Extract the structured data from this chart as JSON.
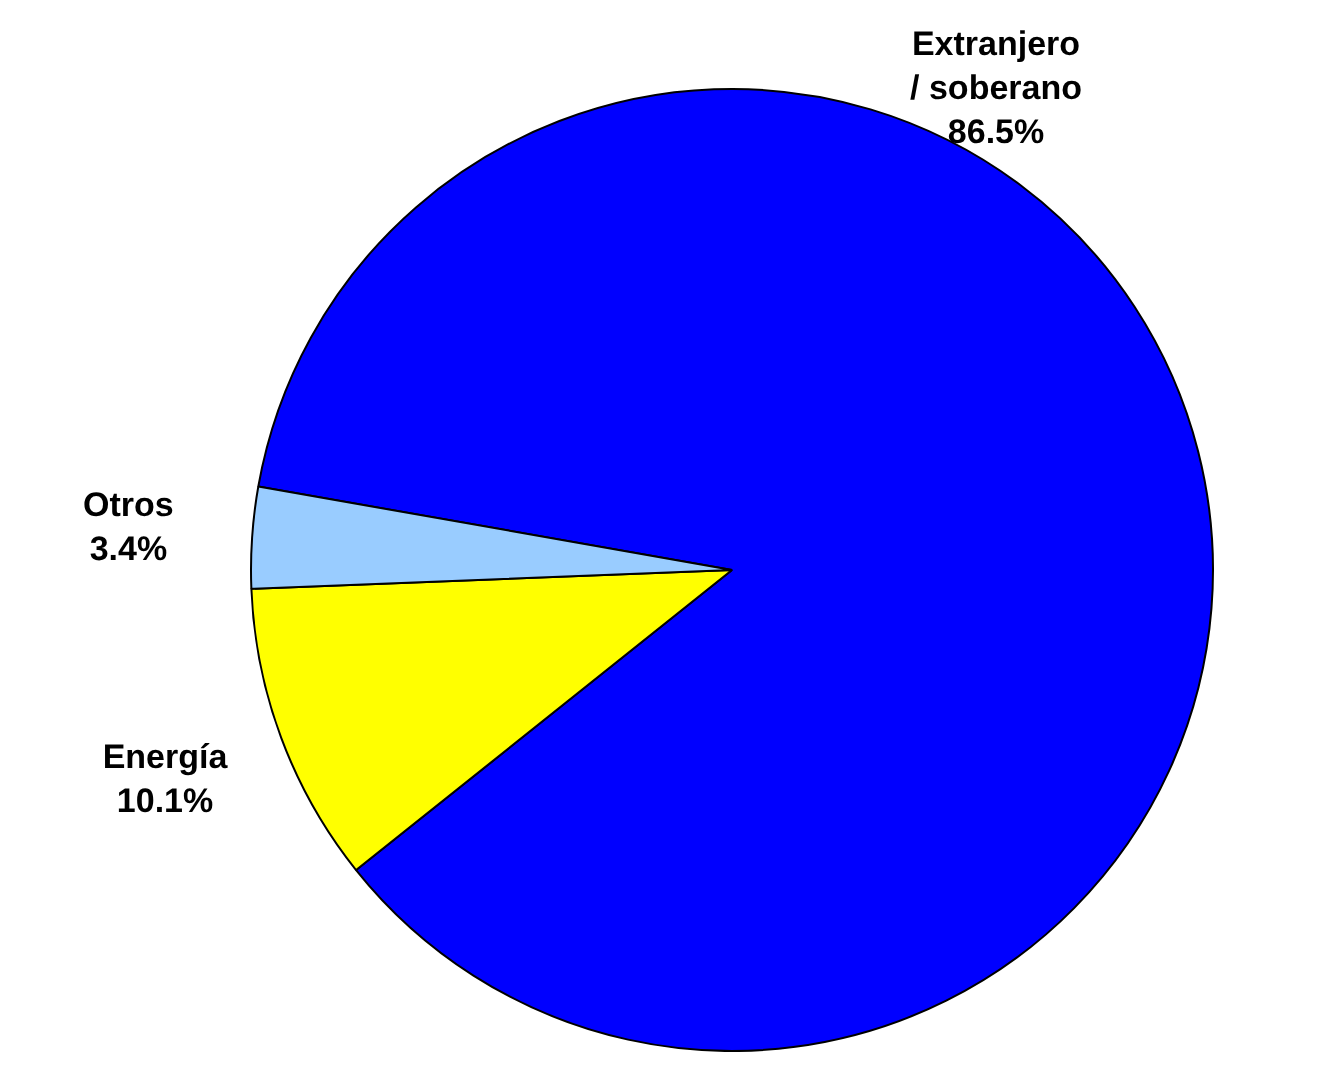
{
  "chart_data": {
    "type": "pie",
    "categories": [
      "Extranjero / soberano",
      "Energía",
      "Otros"
    ],
    "values": [
      86.5,
      10.1,
      3.4
    ],
    "value_labels": [
      "86.5%",
      "10.1%",
      "3.4%"
    ],
    "colors": [
      "#0000ff",
      "#ffff00",
      "#99ccff"
    ],
    "legend": false
  }
}
